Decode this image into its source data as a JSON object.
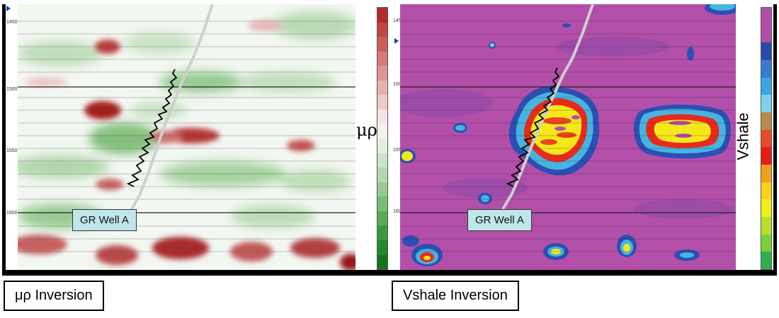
{
  "left_panel": {
    "well_label": "GR Well A",
    "colorbar_label": "μρ",
    "caption": "μρ Inversion",
    "ticks": [
      "1450",
      "1500",
      "1550",
      "1600"
    ],
    "colorbar": [
      "#b52a2a",
      "#c24646",
      "#cc5d5d",
      "#d57a7a",
      "#dd9494",
      "#e6b0b0",
      "#eecaca",
      "#f6e4e4",
      "#f3f3f0",
      "#e2efe0",
      "#c9e4c6",
      "#b2d9ad",
      "#97cb91",
      "#7cbd74",
      "#5aa955",
      "#3c9840",
      "#23862a",
      "#12751e"
    ]
  },
  "right_panel": {
    "well_label": "GR Well A",
    "colorbar_label": "Vshale",
    "caption": "Vshale Inversion",
    "ticks": [
      "1450",
      "1500",
      "1550",
      "1600"
    ],
    "colorbar": [
      "#b04ea8",
      "#b04ea8",
      "#2a4aa8",
      "#3a7ad0",
      "#3aa6e6",
      "#7fd0ee",
      "#b98a4a",
      "#e84a2a",
      "#e81a1a",
      "#f0a01a",
      "#f8d21a",
      "#f0f01a",
      "#b8e02a",
      "#7ad03a",
      "#2fb04a"
    ],
    "colors": {
      "background": "#b24fa9",
      "blue": "#2b4fb3",
      "cyan": "#45b5e0",
      "red": "#e82a1a",
      "yellow": "#f5e81a"
    }
  }
}
